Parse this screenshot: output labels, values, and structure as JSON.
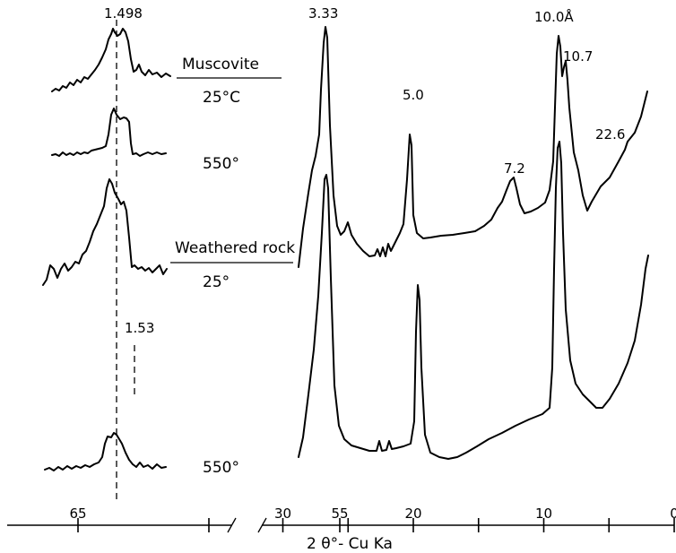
{
  "chart_data": {
    "type": "line",
    "title": "",
    "xlabel": "2 θ°- Cu Ka",
    "ylabel": "",
    "grid": false,
    "x_reversed": true,
    "panels": [
      {
        "name": "left-panel",
        "xlim": [
          68,
          54
        ],
        "ticks": [
          {
            "value": 65,
            "label": "65"
          },
          {
            "value": 60,
            "label": ""
          },
          {
            "value": 55,
            "label": "55"
          }
        ],
        "reference_lines": [
          {
            "value": 61.9,
            "label": "1.498",
            "style": "dashed"
          },
          {
            "value": 60.4,
            "label": "1.53",
            "style": "dashed"
          }
        ],
        "traces": [
          {
            "name": "Muscovite 25°C",
            "peaks": [
              {
                "x": 61.9,
                "rel_height": 1.0
              }
            ]
          },
          {
            "name": "Muscovite 550°",
            "peaks": [
              {
                "x": 61.8,
                "rel_height": 1.0
              }
            ]
          },
          {
            "name": "Weathered rock 25°",
            "peaks": [
              {
                "x": 62.1,
                "rel_height": 1.0
              }
            ]
          },
          {
            "name": "Weathered rock 550°",
            "peaks": [
              {
                "x": 62.2,
                "rel_height": 0.35
              }
            ]
          }
        ]
      },
      {
        "name": "right-panel",
        "xlim": [
          31,
          0
        ],
        "ticks": [
          {
            "value": 30,
            "label": "30"
          },
          {
            "value": 25,
            "label": ""
          },
          {
            "value": 20,
            "label": "20"
          },
          {
            "value": 15,
            "label": ""
          },
          {
            "value": 10,
            "label": "10"
          },
          {
            "value": 5,
            "label": ""
          },
          {
            "value": 0,
            "label": "0"
          }
        ],
        "traces": [
          {
            "name": "Muscovite 25°C",
            "peaks": [
              {
                "x": 26.7,
                "rel_height": 1.0,
                "label": "3.33"
              },
              {
                "x": 17.8,
                "rel_height": 0.55,
                "label": "5.0"
              },
              {
                "x": 12.3,
                "rel_height": 0.35,
                "label": "7.2"
              },
              {
                "x": 8.8,
                "rel_height": 1.0,
                "label": "10.0Å"
              },
              {
                "x": 8.2,
                "rel_height": 0.72,
                "label": "10.7"
              },
              {
                "x": 3.9,
                "rel_height": 0.3,
                "label": "22.6"
              }
            ]
          },
          {
            "name": "Weathered rock 550°",
            "peaks": [
              {
                "x": 26.6,
                "rel_height": 1.0
              },
              {
                "x": 17.8,
                "rel_height": 0.82
              },
              {
                "x": 8.8,
                "rel_height": 1.0
              }
            ]
          }
        ]
      }
    ],
    "annotations": [
      {
        "text": "Muscovite",
        "underline": true
      },
      {
        "text": "25°C"
      },
      {
        "text": "550°"
      },
      {
        "text": "Weathered rock",
        "underline": true
      },
      {
        "text": "25°"
      },
      {
        "text": "550°"
      }
    ]
  }
}
